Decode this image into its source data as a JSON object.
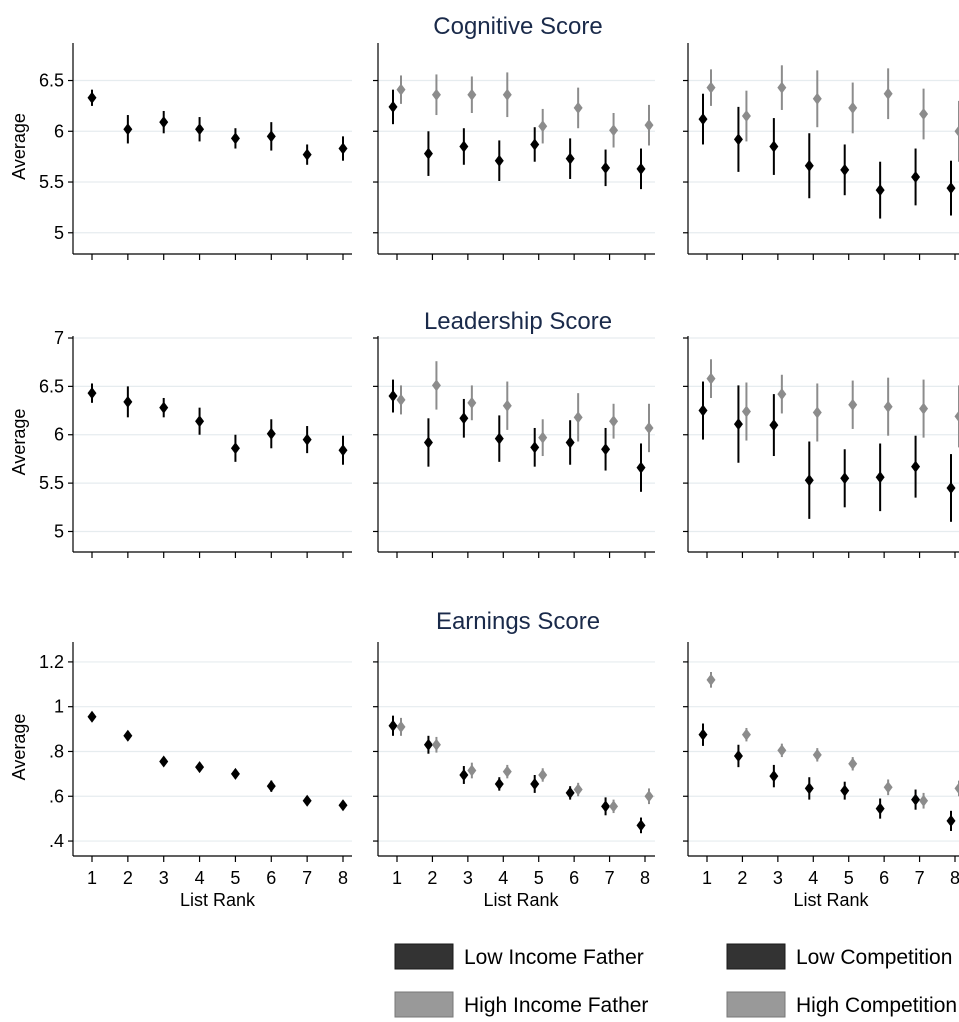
{
  "colors": {
    "low": "#000000",
    "high": "#8c8c8c",
    "grid": "#e6ecef",
    "axis": "#000000",
    "title": "#1a2a4a",
    "legend_low": "#333333",
    "legend_high": "#999999"
  },
  "legend_groups": [
    {
      "low_label": "Low Income Father",
      "high_label": "High Income Father"
    },
    {
      "low_label": "Low Competition",
      "high_label": "High Competition"
    }
  ],
  "chart_data": [
    {
      "type": "scatter",
      "title": "Cognitive Score",
      "ylabel": "Average",
      "xlabel": "",
      "ylim": [
        4.85,
        6.85
      ],
      "yticks": [
        5,
        5.5,
        6,
        6.5
      ],
      "ytick_labels": [
        "5",
        "5.5",
        "6",
        "6.5"
      ],
      "x": [
        1,
        2,
        3,
        4,
        5,
        6,
        7,
        8
      ],
      "xtick_labels": [],
      "panels": [
        {
          "series": [
            {
              "group": "all",
              "values": [
                6.33,
                6.02,
                6.09,
                6.02,
                5.93,
                5.95,
                5.77,
                5.83
              ],
              "err": [
                0.08,
                0.14,
                0.11,
                0.12,
                0.1,
                0.14,
                0.1,
                0.12
              ]
            }
          ]
        },
        {
          "series": [
            {
              "group": "low",
              "values": [
                6.24,
                5.78,
                5.85,
                5.71,
                5.87,
                5.73,
                5.64,
                5.63
              ],
              "err": [
                0.17,
                0.22,
                0.18,
                0.2,
                0.17,
                0.2,
                0.18,
                0.2
              ]
            },
            {
              "group": "high",
              "values": [
                6.41,
                6.36,
                6.36,
                6.36,
                6.05,
                6.23,
                6.01,
                6.06
              ],
              "err": [
                0.14,
                0.2,
                0.18,
                0.22,
                0.17,
                0.2,
                0.17,
                0.2
              ]
            }
          ]
        },
        {
          "series": [
            {
              "group": "low",
              "values": [
                6.12,
                5.92,
                5.85,
                5.66,
                5.62,
                5.42,
                5.55,
                5.44
              ],
              "err": [
                0.25,
                0.32,
                0.28,
                0.32,
                0.25,
                0.28,
                0.28,
                0.27
              ]
            },
            {
              "group": "high",
              "values": [
                6.43,
                6.15,
                6.43,
                6.32,
                6.23,
                6.37,
                6.17,
                6.0
              ],
              "err": [
                0.18,
                0.25,
                0.22,
                0.28,
                0.25,
                0.25,
                0.25,
                0.3
              ]
            }
          ]
        }
      ]
    },
    {
      "type": "scatter",
      "title": "Leadership Score",
      "ylabel": "Average",
      "xlabel": "",
      "ylim": [
        4.85,
        7.0
      ],
      "yticks": [
        5,
        5.5,
        6,
        6.5,
        7
      ],
      "ytick_labels": [
        "5",
        "5.5",
        "6",
        "6.5",
        "7"
      ],
      "x": [
        1,
        2,
        3,
        4,
        5,
        6,
        7,
        8
      ],
      "xtick_labels": [],
      "panels": [
        {
          "series": [
            {
              "group": "all",
              "values": [
                6.43,
                6.34,
                6.28,
                6.14,
                5.86,
                6.01,
                5.95,
                5.84
              ],
              "err": [
                0.1,
                0.16,
                0.1,
                0.14,
                0.14,
                0.15,
                0.14,
                0.15
              ]
            }
          ]
        },
        {
          "series": [
            {
              "group": "low",
              "values": [
                6.4,
                5.92,
                6.17,
                5.96,
                5.87,
                5.92,
                5.85,
                5.66
              ],
              "err": [
                0.17,
                0.25,
                0.2,
                0.24,
                0.2,
                0.23,
                0.22,
                0.25
              ]
            },
            {
              "group": "high",
              "values": [
                6.36,
                6.51,
                6.33,
                6.3,
                5.97,
                6.18,
                6.14,
                6.07
              ],
              "err": [
                0.15,
                0.25,
                0.18,
                0.25,
                0.19,
                0.25,
                0.18,
                0.25
              ]
            }
          ]
        },
        {
          "series": [
            {
              "group": "low",
              "values": [
                6.25,
                6.11,
                6.1,
                5.53,
                5.55,
                5.56,
                5.67,
                5.45
              ],
              "err": [
                0.3,
                0.4,
                0.32,
                0.4,
                0.3,
                0.35,
                0.32,
                0.35
              ]
            },
            {
              "group": "high",
              "values": [
                6.58,
                6.24,
                6.42,
                6.23,
                6.31,
                6.29,
                6.27,
                6.19
              ],
              "err": [
                0.2,
                0.3,
                0.2,
                0.3,
                0.25,
                0.3,
                0.3,
                0.32
              ]
            }
          ]
        }
      ]
    },
    {
      "type": "scatter",
      "title": "Earnings Score",
      "ylabel": "Average",
      "xlabel": "List Rank",
      "ylim": [
        0.36,
        1.28
      ],
      "yticks": [
        0.4,
        0.6,
        0.8,
        1.0,
        1.2
      ],
      "ytick_labels": [
        ".4",
        ".6",
        ".8",
        "1",
        "1.2"
      ],
      "x": [
        1,
        2,
        3,
        4,
        5,
        6,
        7,
        8
      ],
      "xtick_labels": [
        "1",
        "2",
        "3",
        "4",
        "5",
        "6",
        "7",
        "8"
      ],
      "panels": [
        {
          "series": [
            {
              "group": "all",
              "values": [
                0.955,
                0.87,
                0.755,
                0.73,
                0.7,
                0.645,
                0.58,
                0.56
              ],
              "err": [
                0.02,
                0.02,
                0.02,
                0.02,
                0.02,
                0.025,
                0.02,
                0.02
              ]
            }
          ]
        },
        {
          "series": [
            {
              "group": "low",
              "values": [
                0.915,
                0.83,
                0.695,
                0.655,
                0.655,
                0.615,
                0.555,
                0.47
              ],
              "err": [
                0.045,
                0.04,
                0.04,
                0.03,
                0.04,
                0.03,
                0.04,
                0.035
              ]
            },
            {
              "group": "high",
              "values": [
                0.91,
                0.83,
                0.715,
                0.71,
                0.695,
                0.63,
                0.555,
                0.6
              ],
              "err": [
                0.04,
                0.035,
                0.035,
                0.03,
                0.03,
                0.03,
                0.03,
                0.035
              ]
            }
          ]
        },
        {
          "series": [
            {
              "group": "low",
              "values": [
                0.875,
                0.78,
                0.69,
                0.635,
                0.625,
                0.545,
                0.585,
                0.49
              ],
              "err": [
                0.05,
                0.05,
                0.05,
                0.05,
                0.04,
                0.045,
                0.045,
                0.045
              ]
            },
            {
              "group": "high",
              "values": [
                1.12,
                0.875,
                0.805,
                0.785,
                0.745,
                0.64,
                0.58,
                0.635
              ],
              "err": [
                0.035,
                0.03,
                0.03,
                0.03,
                0.03,
                0.035,
                0.035,
                0.035
              ]
            }
          ]
        }
      ]
    }
  ]
}
